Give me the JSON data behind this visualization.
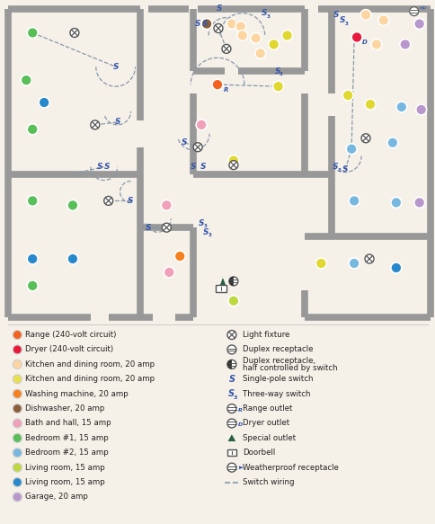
{
  "bg_color": "#f5f0e8",
  "wall_color": "#989898",
  "legend_left": [
    {
      "color": "#f4621f",
      "label": "Range (240-volt circuit)"
    },
    {
      "color": "#e8193c",
      "label": "Dryer (240-volt circuit)"
    },
    {
      "color": "#fcd5a0",
      "label": "Kitchen and dining room, 20 amp"
    },
    {
      "color": "#e8e050",
      "label": "Kitchen and dining room, 20 amp"
    },
    {
      "color": "#f48020",
      "label": "Washing machine, 20 amp"
    },
    {
      "color": "#8b5e3c",
      "label": "Dishwasher, 20 amp"
    },
    {
      "color": "#f0a0b8",
      "label": "Bath and hall, 15 amp"
    },
    {
      "color": "#58be58",
      "label": "Bedroom #1, 15 amp"
    },
    {
      "color": "#78b8e0",
      "label": "Bedroom #2, 15 amp"
    },
    {
      "color": "#c0d840",
      "label": "Living room, 15 amp"
    },
    {
      "color": "#2888cc",
      "label": "Living room, 15 amp"
    },
    {
      "color": "#b898cc",
      "label": "Garage, 20 amp"
    }
  ]
}
